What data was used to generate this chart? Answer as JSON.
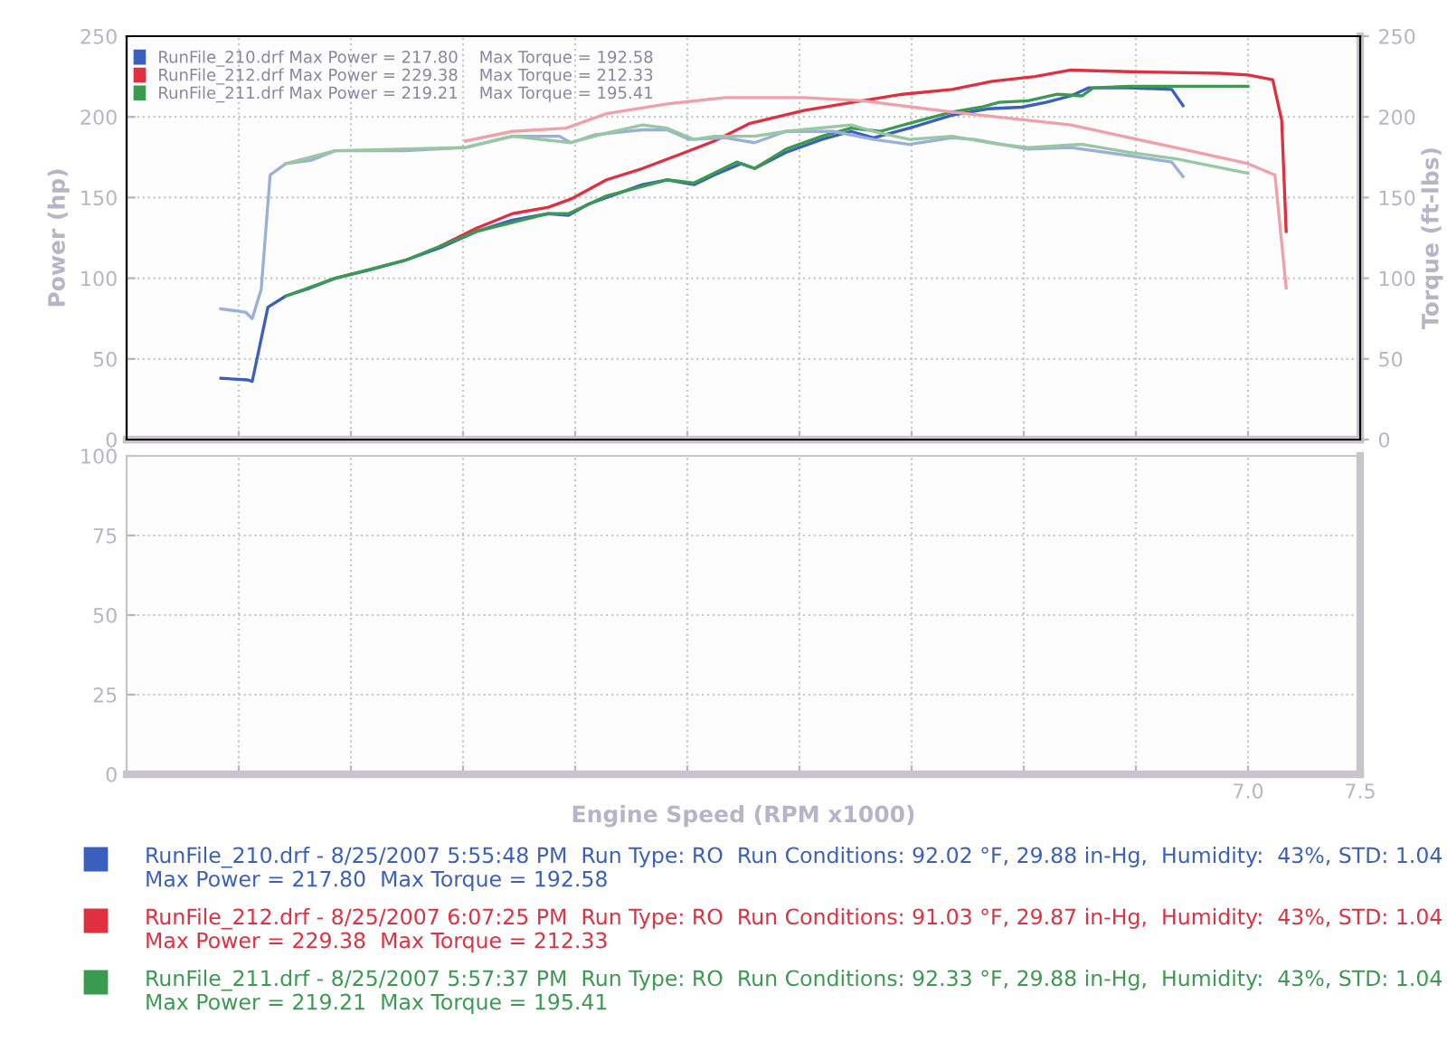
{
  "chart_data": [
    {
      "type": "line",
      "ylabel": "Power (hp)",
      "y2label": "Torque (ft-lbs)",
      "xlim": [
        2.0,
        7.5
      ],
      "xticks": [
        {
          "value": 2.0,
          "label": null
        },
        {
          "value": 2.5,
          "label": null
        },
        {
          "value": 3.0,
          "label": null
        },
        {
          "value": 3.5,
          "label": null
        },
        {
          "value": 4.0,
          "label": null
        },
        {
          "value": 4.5,
          "label": null
        },
        {
          "value": 5.0,
          "label": null
        },
        {
          "value": 5.5,
          "label": null
        },
        {
          "value": 6.0,
          "label": null
        },
        {
          "value": 6.5,
          "label": null
        },
        {
          "value": 7.0,
          "label": null
        },
        {
          "value": 7.5,
          "label": null
        }
      ],
      "ylim": [
        0,
        250
      ],
      "yticks": [
        0,
        50,
        100,
        150,
        200,
        250
      ],
      "y2lim": [
        0,
        250
      ],
      "y2ticks": [
        0,
        50,
        100,
        150,
        200,
        250
      ],
      "tick_labels": "y",
      "grid": true,
      "legend": "top left",
      "marker": "none",
      "line_style": "solid",
      "series": [
        {
          "name": "RunFile_210.drf Max Power = 217.80    Max Torque = 192.58",
          "color": "#3a5fbf",
          "x": [
            2.42,
            2.54,
            2.56,
            2.63,
            2.71,
            2.82,
            2.93,
            3.08,
            3.24,
            3.4,
            3.56,
            3.72,
            3.88,
            3.97,
            4.06,
            4.14,
            4.3,
            4.41,
            4.53,
            4.62,
            4.74,
            4.8,
            4.94,
            5.1,
            5.23,
            5.33,
            5.49,
            5.68,
            5.84,
            5.99,
            6.1,
            6.21,
            6.29,
            6.47,
            6.66,
            6.71
          ],
          "values": [
            38,
            37,
            36,
            82,
            89,
            94,
            100,
            105,
            111,
            119,
            129,
            136,
            140,
            139,
            146,
            150,
            158,
            161,
            158,
            164,
            171,
            168,
            178,
            186,
            191,
            187,
            193,
            201,
            205,
            206,
            209,
            213,
            218,
            218,
            217,
            207
          ]
        },
        {
          "color": "#9ab0d8",
          "axis": "y2",
          "x": [
            2.42,
            2.53,
            2.56,
            2.6,
            2.64,
            2.71,
            2.82,
            2.93,
            3.24,
            3.51,
            3.72,
            3.93,
            3.98,
            4.09,
            4.3,
            4.41,
            4.51,
            4.67,
            4.8,
            4.94,
            5.15,
            5.33,
            5.49,
            5.68,
            5.78,
            6.02,
            6.21,
            6.47,
            6.66,
            6.71
          ],
          "values": [
            81,
            79,
            75,
            93,
            164,
            171,
            173,
            179,
            179,
            181,
            188,
            188,
            184,
            189,
            192,
            192,
            186,
            187,
            184,
            191,
            191,
            186,
            183,
            187,
            186,
            180,
            181,
            176,
            172,
            163
          ]
        },
        {
          "name": "RunFile_212.drf Max Power = 229.38    Max Torque = 212.33",
          "color": "#e03040",
          "x": [
            3.4,
            3.56,
            3.72,
            3.88,
            3.98,
            4.14,
            4.3,
            4.49,
            4.62,
            4.78,
            5.02,
            5.28,
            5.46,
            5.68,
            5.86,
            6.05,
            6.21,
            6.47,
            6.87,
            7.0,
            7.11,
            7.15,
            7.17
          ],
          "values": [
            120,
            131,
            140,
            144,
            149,
            161,
            168,
            178,
            185,
            196,
            204,
            210,
            214,
            217,
            222,
            225,
            229,
            228,
            227,
            226,
            223,
            198,
            129
          ]
        },
        {
          "color": "#f0a0a8",
          "axis": "y2",
          "x": [
            3.51,
            3.72,
            3.96,
            4.14,
            4.41,
            4.67,
            4.94,
            5.02,
            5.28,
            5.68,
            6.21,
            6.74,
            7.0,
            7.12,
            7.17
          ],
          "values": [
            185,
            191,
            193,
            202,
            208,
            212,
            212,
            212,
            210,
            203,
            195,
            179,
            171,
            164,
            94
          ]
        },
        {
          "name": "RunFile_211.drf Max Power = 219.21    Max Torque = 195.41",
          "color": "#3a9a50",
          "x": [
            2.71,
            2.93,
            3.24,
            3.56,
            3.88,
            3.97,
            4.14,
            4.41,
            4.53,
            4.72,
            4.8,
            4.94,
            5.1,
            5.23,
            5.36,
            5.49,
            5.68,
            5.81,
            5.89,
            6.02,
            6.15,
            6.26,
            6.31,
            6.47,
            6.63,
            7.0
          ],
          "values": [
            89,
            100,
            111,
            129,
            140,
            140,
            151,
            161,
            159,
            172,
            168,
            180,
            188,
            193,
            191,
            196,
            203,
            206,
            209,
            210,
            214,
            213,
            218,
            219,
            219,
            219
          ]
        },
        {
          "color": "#98c8a0",
          "axis": "y2",
          "x": [
            2.71,
            2.93,
            3.51,
            3.72,
            3.98,
            4.14,
            4.3,
            4.41,
            4.53,
            4.62,
            4.8,
            4.94,
            5.23,
            5.33,
            5.49,
            5.68,
            5.89,
            6.02,
            6.26,
            6.47,
            6.68,
            7.0
          ],
          "values": [
            171,
            179,
            181,
            188,
            184,
            190,
            195,
            193,
            186,
            188,
            188,
            191,
            195,
            191,
            186,
            188,
            183,
            181,
            183,
            178,
            174,
            165
          ]
        }
      ]
    },
    {
      "type": "line",
      "xlabel": "Engine Speed (RPM x1000)",
      "xlim": [
        2.0,
        7.5
      ],
      "xticks": [
        {
          "value": 2.0,
          "label": null
        },
        {
          "value": 2.5,
          "label": null
        },
        {
          "value": 3.0,
          "label": null
        },
        {
          "value": 3.5,
          "label": null
        },
        {
          "value": 4.0,
          "label": null
        },
        {
          "value": 4.5,
          "label": null
        },
        {
          "value": 5.0,
          "label": null
        },
        {
          "value": 5.5,
          "label": null
        },
        {
          "value": 6.0,
          "label": null
        },
        {
          "value": 6.5,
          "label": null
        },
        {
          "value": 7.0,
          "label": "7.0"
        },
        {
          "value": 7.5,
          "label": "7.5"
        }
      ],
      "ylim": [
        0,
        100
      ],
      "yticks": [
        0,
        25,
        50,
        75,
        100
      ],
      "grid": true,
      "annotations": [
        "RunFile_210.drf - 8/25/2007 5:55:48 PM  Run Type: RO  Run Conditions: 92.02 °F, 29.88 in-Hg,  Humidity:  43%, STD: 1.04\nMax Power = 217.80  Max Torque = 192.58",
        "RunFile_212.drf - 8/25/2007 6:07:25 PM  Run Type: RO  Run Conditions: 91.03 °F, 29.87 in-Hg,  Humidity:  43%, STD: 1.04\nMax Power = 229.38  Max Torque = 212.33",
        "RunFile_211.drf - 8/25/2007 5:57:37 PM  Run Type: RO  Run Conditions: 92.33 °F, 29.88 in-Hg,  Humidity:  43%, STD: 1.04\nMax Power = 219.21  Max Torque = 195.41"
      ]
    }
  ]
}
